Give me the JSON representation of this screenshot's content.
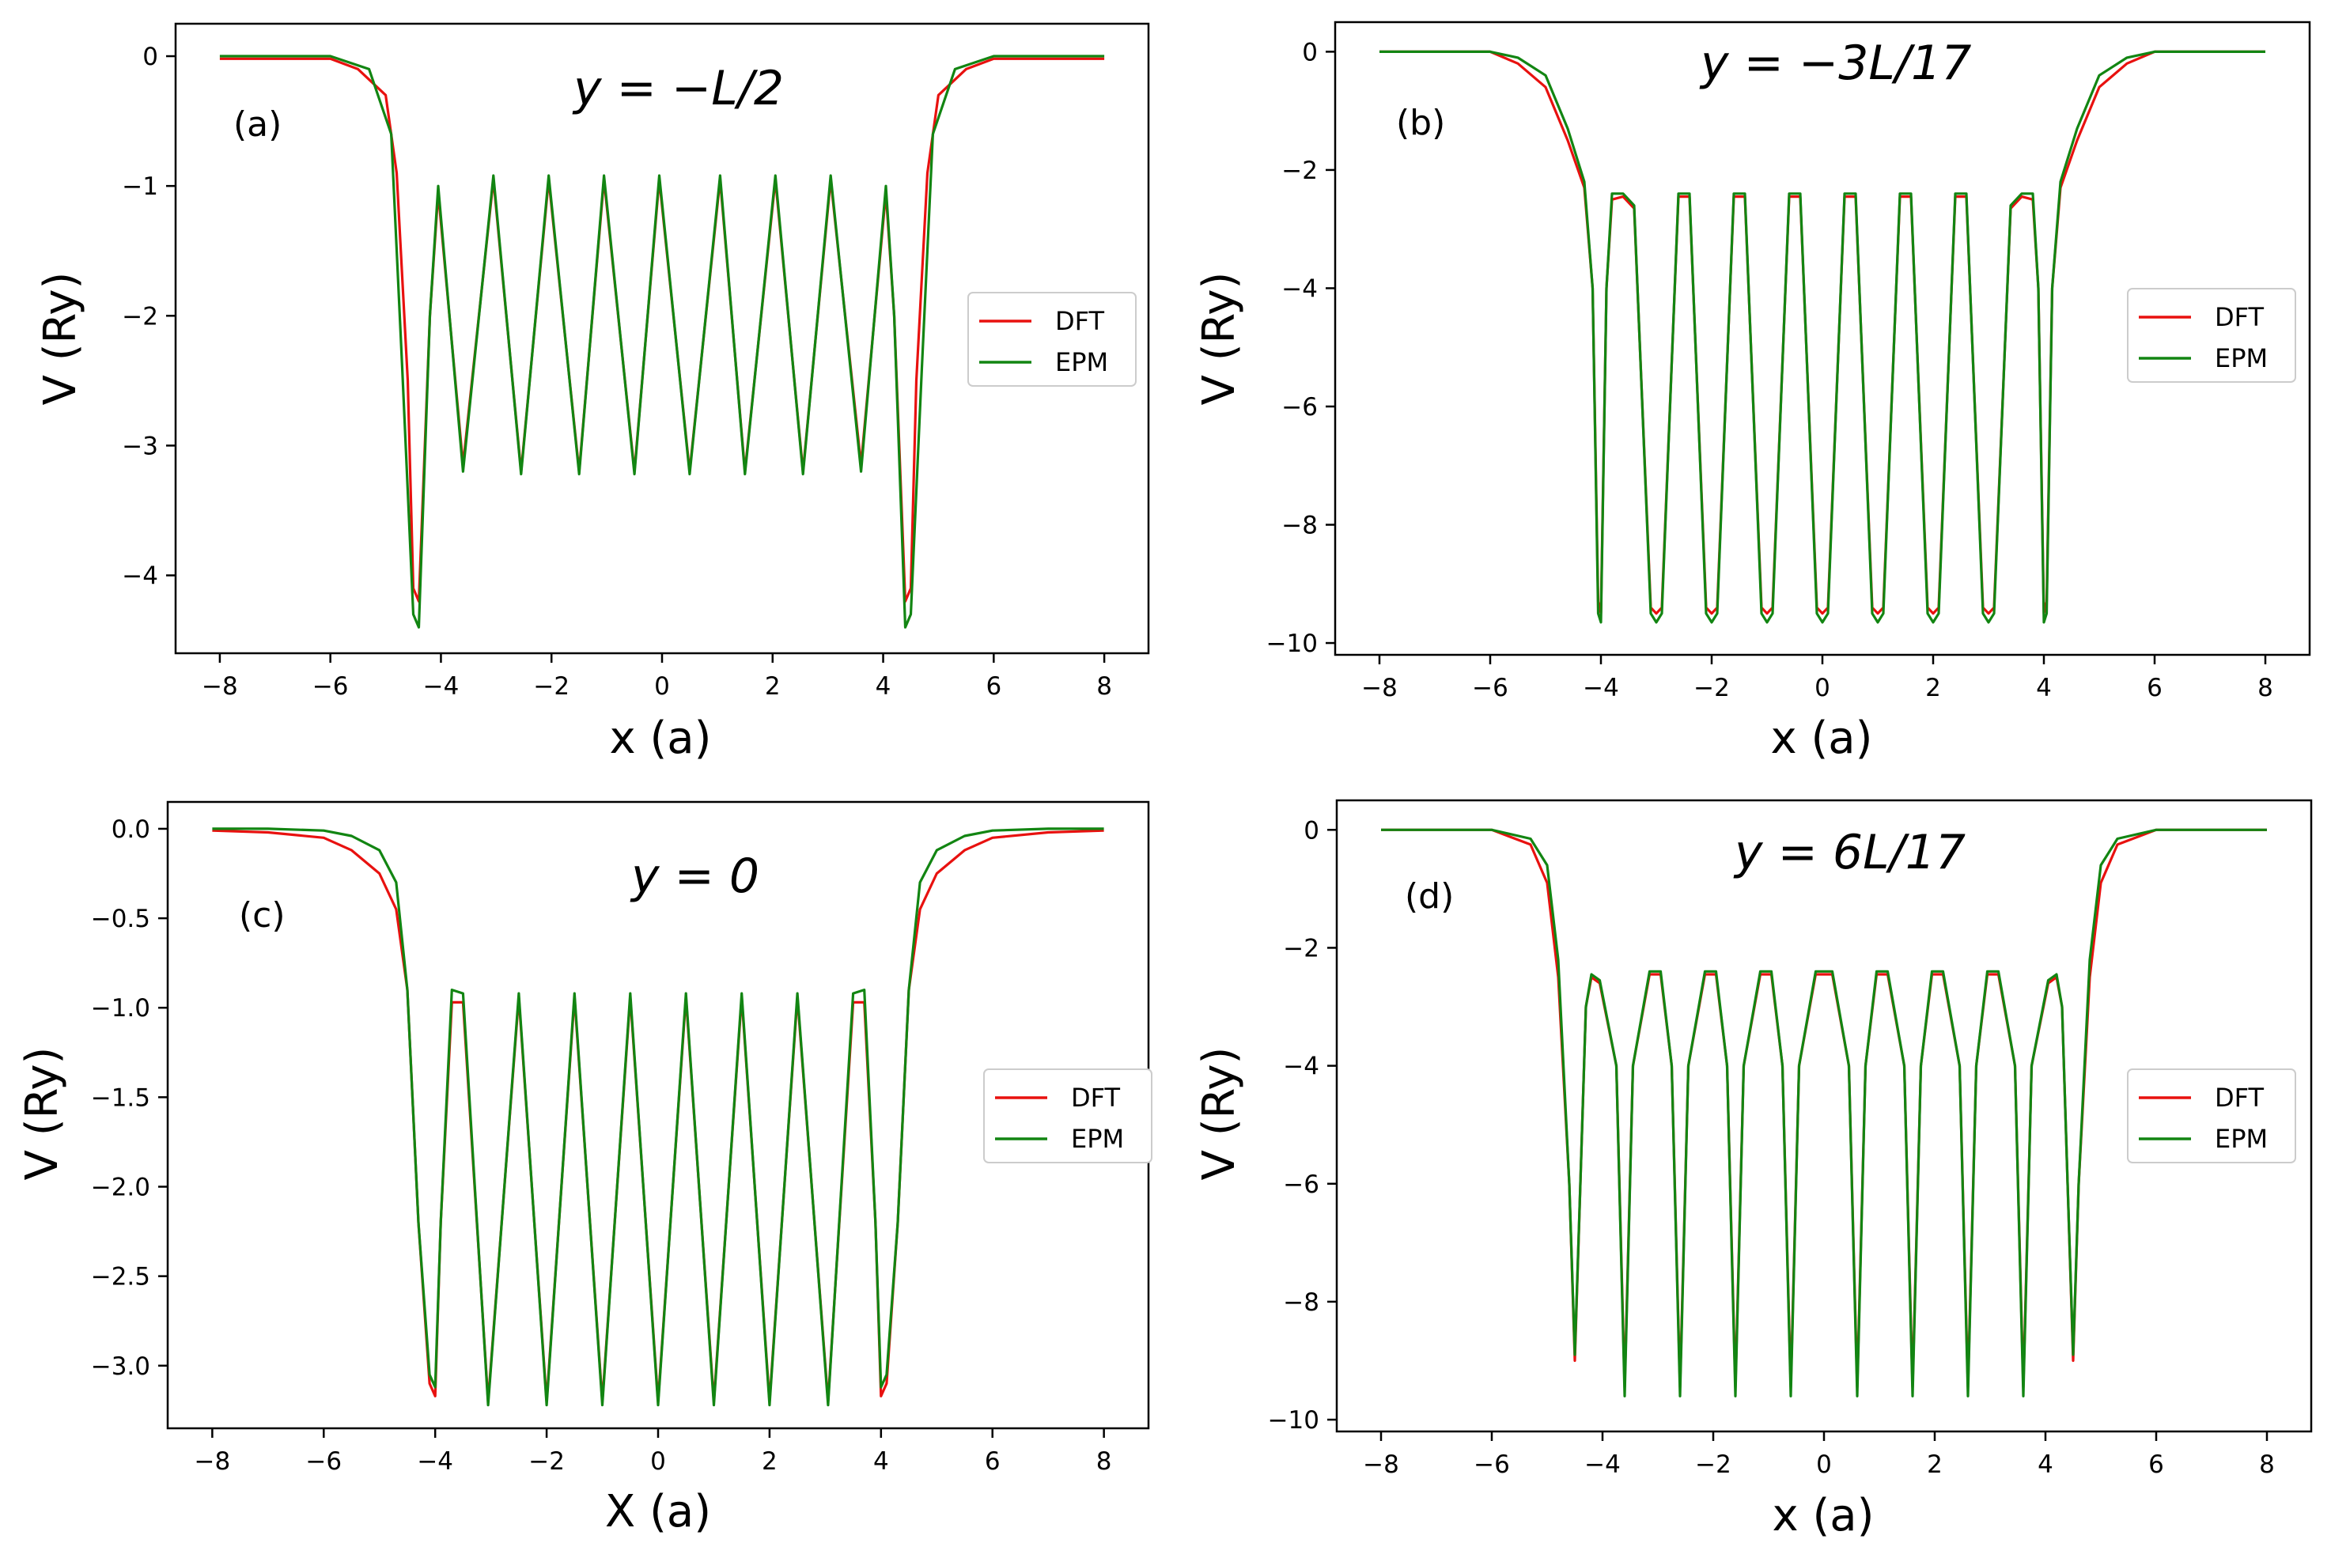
{
  "colors": {
    "DFT": "#e8110f",
    "EPM": "#128512"
  },
  "chart_data": [
    {
      "type": "line",
      "panel_label": "(a)",
      "annotation": "y = −L/2",
      "xlabel": "x (a)",
      "ylabel": "V (Ry)",
      "xlim": [
        -8.8,
        8.8
      ],
      "ylim": [
        -4.6,
        0.25
      ],
      "xticks": [
        -8,
        -6,
        -4,
        -2,
        0,
        2,
        4,
        6,
        8
      ],
      "xtick_labels": [
        "−8",
        "−6",
        "−4",
        "−2",
        "0",
        "2",
        "4",
        "6",
        "8"
      ],
      "yticks": [
        0,
        -1,
        -2,
        -3,
        -4
      ],
      "ytick_labels": [
        "0",
        "−1",
        "−2",
        "−3",
        "−4"
      ],
      "legend": {
        "entries": [
          "DFT",
          "EPM"
        ],
        "placement": "center-right"
      },
      "series": [
        {
          "name": "DFT",
          "x": [
            -8,
            -7,
            -6,
            -5.5,
            -5,
            -4.8,
            -4.6,
            -4.5,
            -4.4,
            -4.2,
            -4.05,
            -3.6,
            -3.05,
            -2.55,
            -2.05,
            -1.5,
            -1.05,
            -0.5,
            -0.05,
            0.5,
            1.05,
            1.5,
            2.05,
            2.55,
            3.05,
            3.6,
            4.05,
            4.2,
            4.4,
            4.5,
            4.6,
            4.8,
            5,
            5.5,
            6,
            7,
            8
          ],
          "y": [
            -0.02,
            -0.02,
            -0.02,
            -0.1,
            -0.3,
            -0.9,
            -2.5,
            -4.1,
            -4.2,
            -2.0,
            -1.05,
            -3.15,
            -0.95,
            -3.2,
            -0.95,
            -3.2,
            -0.95,
            -3.2,
            -0.95,
            -3.2,
            -0.95,
            -3.2,
            -0.95,
            -3.2,
            -0.95,
            -3.15,
            -1.05,
            -2.0,
            -4.2,
            -4.1,
            -2.5,
            -0.9,
            -0.3,
            -0.1,
            -0.02,
            -0.02,
            -0.02
          ]
        },
        {
          "name": "EPM",
          "x": [
            -8,
            -7,
            -6,
            -5.3,
            -4.9,
            -4.7,
            -4.5,
            -4.4,
            -4.2,
            -4.05,
            -3.6,
            -3.05,
            -2.55,
            -2.05,
            -1.5,
            -1.05,
            -0.5,
            -0.05,
            0.5,
            1.05,
            1.5,
            2.05,
            2.55,
            3.05,
            3.6,
            4.05,
            4.2,
            4.4,
            4.5,
            4.7,
            4.9,
            5.3,
            6,
            7,
            8
          ],
          "y": [
            0,
            0,
            0,
            -0.1,
            -0.6,
            -2.4,
            -4.3,
            -4.4,
            -2.0,
            -1.0,
            -3.2,
            -0.92,
            -3.22,
            -0.92,
            -3.22,
            -0.92,
            -3.22,
            -0.92,
            -3.22,
            -0.92,
            -3.22,
            -0.92,
            -3.22,
            -0.92,
            -3.2,
            -1.0,
            -2.0,
            -4.4,
            -4.3,
            -2.4,
            -0.6,
            -0.1,
            0,
            0,
            0
          ]
        }
      ]
    },
    {
      "type": "line",
      "panel_label": "(b)",
      "annotation": "y = −3L/17",
      "xlabel": "x (a)",
      "ylabel": "V (Ry)",
      "xlim": [
        -8.8,
        8.8
      ],
      "ylim": [
        -10.2,
        0.5
      ],
      "xticks": [
        -8,
        -6,
        -4,
        -2,
        0,
        2,
        4,
        6,
        8
      ],
      "xtick_labels": [
        "−8",
        "−6",
        "−4",
        "−2",
        "0",
        "2",
        "4",
        "6",
        "8"
      ],
      "yticks": [
        0,
        -2,
        -4,
        -6,
        -8,
        -10
      ],
      "ytick_labels": [
        "0",
        "−2",
        "−4",
        "−6",
        "−8",
        "−10"
      ],
      "legend": {
        "entries": [
          "DFT",
          "EPM"
        ],
        "placement": "center-right"
      },
      "series": [
        {
          "name": "DFT",
          "x": [
            -8,
            -7,
            -6,
            -5.5,
            -5,
            -4.6,
            -4.3,
            -4.15,
            -4.05,
            -4,
            -3.9,
            -3.8,
            -3.6,
            -3.4,
            -3.1,
            -3,
            -2.9,
            -2.6,
            -2.4,
            -2.1,
            -2,
            -1.9,
            -1.6,
            -1.4,
            -1.1,
            -1,
            -0.9,
            -0.6,
            -0.4,
            -0.1,
            0,
            0.1,
            0.4,
            0.6,
            0.9,
            1,
            1.1,
            1.4,
            1.6,
            1.9,
            2,
            2.1,
            2.4,
            2.6,
            2.9,
            3,
            3.1,
            3.4,
            3.6,
            3.8,
            3.9,
            4,
            4.05,
            4.15,
            4.3,
            4.6,
            5,
            5.5,
            6,
            7,
            8
          ],
          "y": [
            0,
            0,
            0,
            -0.2,
            -0.6,
            -1.5,
            -2.3,
            -4,
            -9.3,
            -9.5,
            -4,
            -2.5,
            -2.45,
            -2.65,
            -9.4,
            -9.5,
            -9.4,
            -2.45,
            -2.45,
            -9.4,
            -9.5,
            -9.4,
            -2.45,
            -2.45,
            -9.4,
            -9.5,
            -9.4,
            -2.45,
            -2.45,
            -9.4,
            -9.5,
            -9.4,
            -2.45,
            -2.45,
            -9.4,
            -9.5,
            -9.4,
            -2.45,
            -2.45,
            -9.4,
            -9.5,
            -9.4,
            -2.45,
            -2.45,
            -9.4,
            -9.5,
            -9.4,
            -2.65,
            -2.45,
            -2.5,
            -4,
            -9.5,
            -9.3,
            -4,
            -2.3,
            -1.5,
            -0.6,
            -0.2,
            0,
            0,
            0
          ]
        },
        {
          "name": "EPM",
          "x": [
            -8,
            -7,
            -6,
            -5.5,
            -5,
            -4.6,
            -4.3,
            -4.15,
            -4.05,
            -4,
            -3.9,
            -3.8,
            -3.6,
            -3.4,
            -3.1,
            -3,
            -2.9,
            -2.6,
            -2.4,
            -2.1,
            -2,
            -1.9,
            -1.6,
            -1.4,
            -1.1,
            -1,
            -0.9,
            -0.6,
            -0.4,
            -0.1,
            0,
            0.1,
            0.4,
            0.6,
            0.9,
            1,
            1.1,
            1.4,
            1.6,
            1.9,
            2,
            2.1,
            2.4,
            2.6,
            2.9,
            3,
            3.1,
            3.4,
            3.6,
            3.8,
            3.9,
            4,
            4.05,
            4.15,
            4.3,
            4.6,
            5,
            5.5,
            6,
            7,
            8
          ],
          "y": [
            0,
            0,
            0,
            -0.1,
            -0.4,
            -1.3,
            -2.2,
            -4,
            -9.5,
            -9.65,
            -4,
            -2.4,
            -2.4,
            -2.6,
            -9.5,
            -9.65,
            -9.5,
            -2.4,
            -2.4,
            -9.5,
            -9.65,
            -9.5,
            -2.4,
            -2.4,
            -9.5,
            -9.65,
            -9.5,
            -2.4,
            -2.4,
            -9.5,
            -9.65,
            -9.5,
            -2.4,
            -2.4,
            -9.5,
            -9.65,
            -9.5,
            -2.4,
            -2.4,
            -9.5,
            -9.65,
            -9.5,
            -2.4,
            -2.4,
            -9.5,
            -9.65,
            -9.5,
            -2.6,
            -2.4,
            -2.4,
            -4,
            -9.65,
            -9.5,
            -4,
            -2.2,
            -1.3,
            -0.4,
            -0.1,
            0,
            0,
            0
          ]
        }
      ]
    },
    {
      "type": "line",
      "panel_label": "(c)",
      "annotation": "y = 0",
      "xlabel": "X (a)",
      "ylabel": "V (Ry)",
      "xlim": [
        -8.8,
        8.8
      ],
      "ylim": [
        -3.35,
        0.15
      ],
      "xticks": [
        -8,
        -6,
        -4,
        -2,
        0,
        2,
        4,
        6,
        8
      ],
      "xtick_labels": [
        "−8",
        "−6",
        "−4",
        "−2",
        "0",
        "2",
        "4",
        "6",
        "8"
      ],
      "yticks": [
        0,
        -0.5,
        -1,
        -1.5,
        -2,
        -2.5,
        -3
      ],
      "ytick_labels": [
        "0.0",
        "−0.5",
        "−1.0",
        "−1.5",
        "−2.0",
        "−2.5",
        "−3.0"
      ],
      "legend": {
        "entries": [
          "DFT",
          "EPM"
        ],
        "placement": "center-right"
      },
      "series": [
        {
          "name": "DFT",
          "x": [
            -8,
            -7,
            -6,
            -5.5,
            -5,
            -4.7,
            -4.5,
            -4.3,
            -4.1,
            -4,
            -3.9,
            -3.7,
            -3.5,
            -3.05,
            -2.5,
            -2,
            -1.5,
            -1,
            -0.5,
            0,
            0.5,
            1,
            1.5,
            2,
            2.5,
            3.05,
            3.5,
            3.7,
            3.9,
            4,
            4.1,
            4.3,
            4.5,
            4.7,
            5,
            5.5,
            6,
            7,
            8
          ],
          "y": [
            -0.01,
            -0.02,
            -0.05,
            -0.12,
            -0.25,
            -0.45,
            -0.9,
            -2.2,
            -3.1,
            -3.17,
            -2.2,
            -0.97,
            -0.97,
            -3.2,
            -0.94,
            -3.2,
            -0.94,
            -3.2,
            -0.94,
            -3.2,
            -0.94,
            -3.2,
            -0.94,
            -3.2,
            -0.94,
            -3.2,
            -0.97,
            -0.97,
            -2.2,
            -3.17,
            -3.1,
            -2.2,
            -0.9,
            -0.45,
            -0.25,
            -0.12,
            -0.05,
            -0.02,
            -0.01
          ]
        },
        {
          "name": "EPM",
          "x": [
            -8,
            -7,
            -6,
            -5.5,
            -5,
            -4.7,
            -4.5,
            -4.3,
            -4.1,
            -4,
            -3.9,
            -3.7,
            -3.5,
            -3.05,
            -2.5,
            -2,
            -1.5,
            -1,
            -0.5,
            0,
            0.5,
            1,
            1.5,
            2,
            2.5,
            3.05,
            3.5,
            3.7,
            3.9,
            4,
            4.1,
            4.3,
            4.5,
            4.7,
            5,
            5.5,
            6,
            7,
            8
          ],
          "y": [
            0,
            0,
            -0.01,
            -0.04,
            -0.12,
            -0.3,
            -0.9,
            -2.2,
            -3.05,
            -3.12,
            -2.2,
            -0.9,
            -0.92,
            -3.22,
            -0.92,
            -3.22,
            -0.92,
            -3.22,
            -0.92,
            -3.22,
            -0.92,
            -3.22,
            -0.92,
            -3.22,
            -0.92,
            -3.22,
            -0.92,
            -0.9,
            -2.2,
            -3.12,
            -3.05,
            -2.2,
            -0.9,
            -0.3,
            -0.12,
            -0.04,
            -0.01,
            0,
            0
          ]
        }
      ]
    },
    {
      "type": "line",
      "panel_label": "(d)",
      "annotation": "y = 6L/17",
      "xlabel": "x (a)",
      "ylabel": "V (Ry)",
      "xlim": [
        -8.8,
        8.8
      ],
      "ylim": [
        -10.2,
        0.5
      ],
      "xticks": [
        -8,
        -6,
        -4,
        -2,
        0,
        2,
        4,
        6,
        8
      ],
      "xtick_labels": [
        "−8",
        "−6",
        "−4",
        "−2",
        "0",
        "2",
        "4",
        "6",
        "8"
      ],
      "yticks": [
        0,
        -2,
        -4,
        -6,
        -8,
        -10
      ],
      "ytick_labels": [
        "0",
        "−2",
        "−4",
        "−6",
        "−8",
        "−10"
      ],
      "legend": {
        "entries": [
          "DFT",
          "EPM"
        ],
        "placement": "center-right"
      },
      "series": [
        {
          "name": "DFT",
          "x": [
            -8,
            -7,
            -6,
            -5.3,
            -5,
            -4.8,
            -4.6,
            -4.5,
            -4.4,
            -4.3,
            -4.2,
            -4.05,
            -3.75,
            -3.6,
            -3.45,
            -3.15,
            -2.95,
            -2.75,
            -2.6,
            -2.45,
            -2.15,
            -1.95,
            -1.75,
            -1.6,
            -1.45,
            -1.15,
            -0.95,
            -0.75,
            -0.6,
            -0.45,
            -0.15,
            0.15,
            0.45,
            0.6,
            0.75,
            0.95,
            1.15,
            1.45,
            1.6,
            1.75,
            1.95,
            2.15,
            2.45,
            2.6,
            2.75,
            2.95,
            3.15,
            3.45,
            3.6,
            3.75,
            4.05,
            4.2,
            4.3,
            4.4,
            4.5,
            4.6,
            4.8,
            5,
            5.3,
            6,
            7,
            8
          ],
          "y": [
            0,
            0,
            0,
            -0.25,
            -0.9,
            -2.5,
            -6,
            -9,
            -6,
            -3,
            -2.5,
            -2.6,
            -4,
            -9.45,
            -4,
            -2.45,
            -2.45,
            -4,
            -9.45,
            -4,
            -2.45,
            -2.45,
            -4,
            -9.45,
            -4,
            -2.45,
            -2.45,
            -4,
            -9.45,
            -4,
            -2.45,
            -2.45,
            -4,
            -9.45,
            -4,
            -2.45,
            -2.45,
            -4,
            -9.45,
            -4,
            -2.45,
            -2.45,
            -4,
            -9.45,
            -4,
            -2.45,
            -2.45,
            -4,
            -9.45,
            -4,
            -2.6,
            -2.5,
            -3,
            -6,
            -9,
            -6,
            -2.5,
            -0.9,
            -0.25,
            0,
            0,
            0
          ]
        },
        {
          "name": "EPM",
          "x": [
            -8,
            -7,
            -6,
            -5.3,
            -5,
            -4.8,
            -4.6,
            -4.5,
            -4.4,
            -4.3,
            -4.2,
            -4.05,
            -3.75,
            -3.6,
            -3.45,
            -3.15,
            -2.95,
            -2.75,
            -2.6,
            -2.45,
            -2.15,
            -1.95,
            -1.75,
            -1.6,
            -1.45,
            -1.15,
            -0.95,
            -0.75,
            -0.6,
            -0.45,
            -0.15,
            0.15,
            0.45,
            0.6,
            0.75,
            0.95,
            1.15,
            1.45,
            1.6,
            1.75,
            1.95,
            2.15,
            2.45,
            2.6,
            2.75,
            2.95,
            3.15,
            3.45,
            3.6,
            3.75,
            4.05,
            4.2,
            4.3,
            4.4,
            4.5,
            4.6,
            4.8,
            5,
            5.3,
            6,
            7,
            8
          ],
          "y": [
            0,
            0,
            0,
            -0.15,
            -0.6,
            -2.2,
            -6,
            -8.9,
            -6,
            -3,
            -2.45,
            -2.55,
            -4,
            -9.6,
            -4,
            -2.4,
            -2.4,
            -4,
            -9.6,
            -4,
            -2.4,
            -2.4,
            -4,
            -9.6,
            -4,
            -2.4,
            -2.4,
            -4,
            -9.6,
            -4,
            -2.4,
            -2.4,
            -4,
            -9.6,
            -4,
            -2.4,
            -2.4,
            -4,
            -9.6,
            -4,
            -2.4,
            -2.4,
            -4,
            -9.6,
            -4,
            -2.4,
            -2.4,
            -4,
            -9.6,
            -4,
            -2.55,
            -2.45,
            -3,
            -6,
            -8.9,
            -6,
            -2.2,
            -0.6,
            -0.15,
            0,
            0,
            0
          ]
        }
      ]
    }
  ]
}
